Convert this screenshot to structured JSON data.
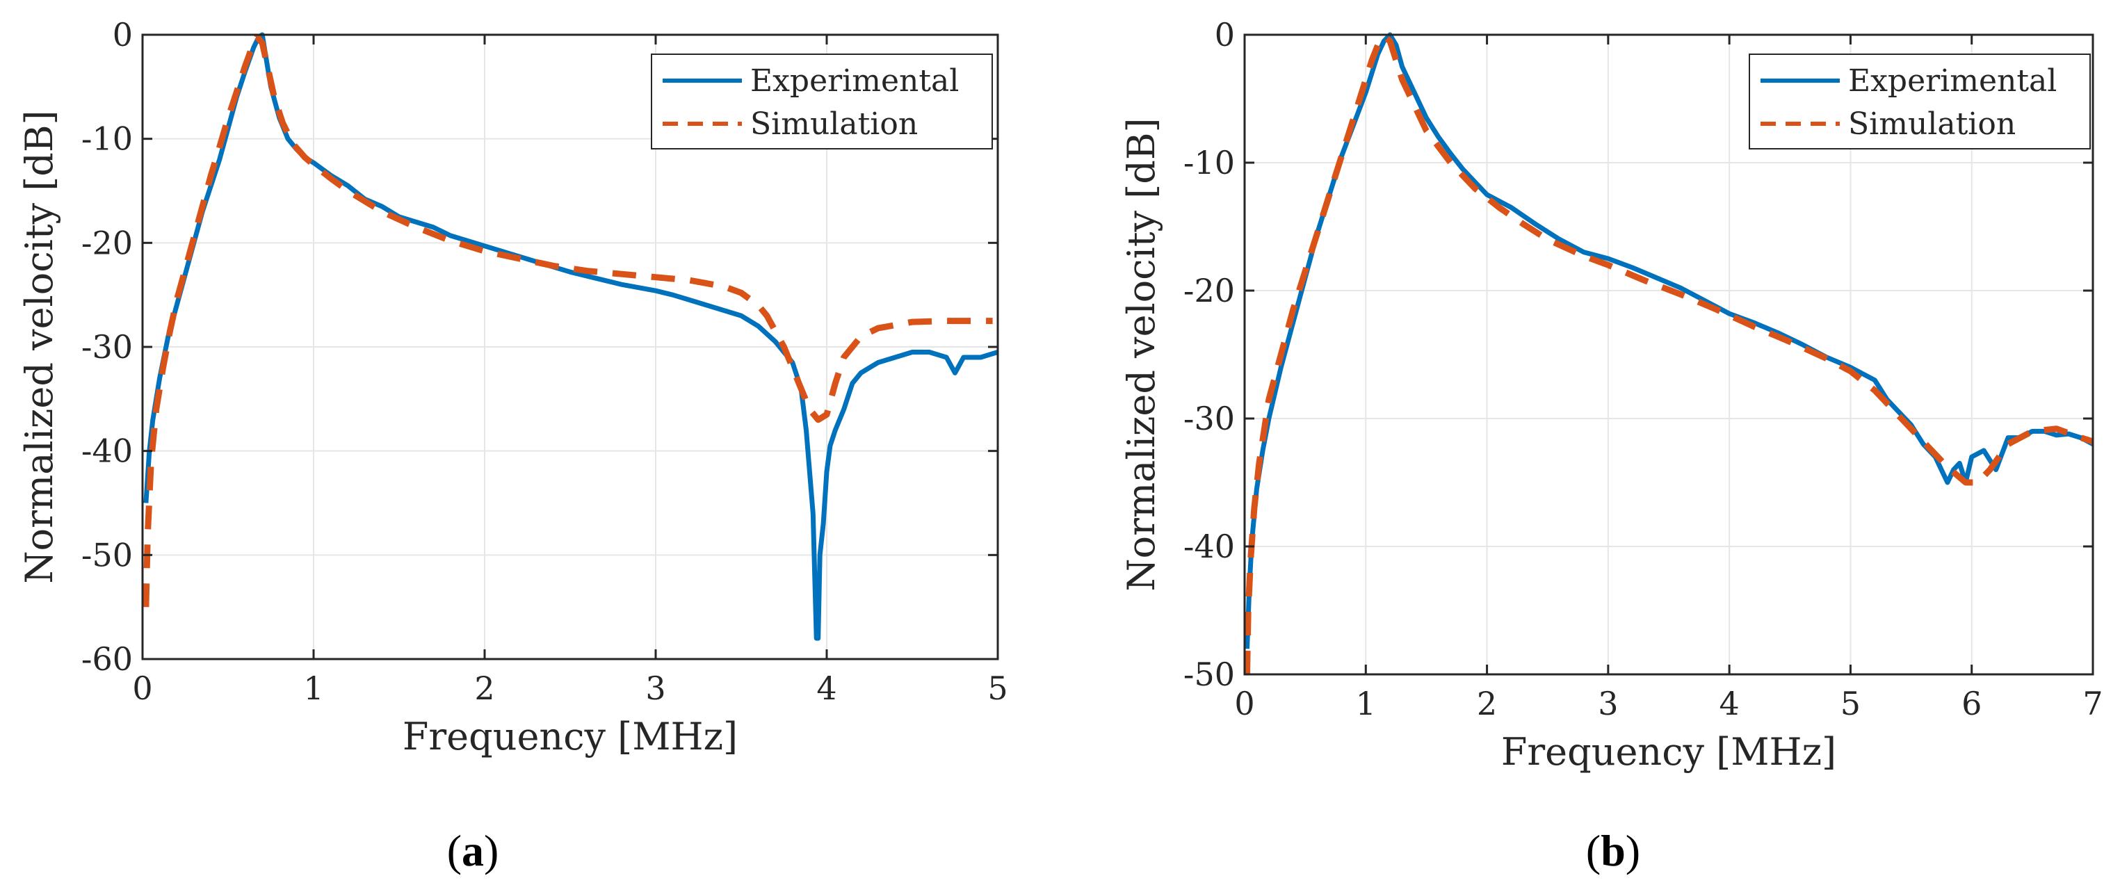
{
  "colors": {
    "experimental": "#0072BD",
    "simulation": "#D95319",
    "grid": "#e6e6e6",
    "axis": "#262626"
  },
  "chart_data": [
    {
      "id": "a",
      "type": "line",
      "caption": {
        "open": "(",
        "letter": "a",
        "close": ")"
      },
      "xlabel": "Frequency [MHz]",
      "ylabel": "Normalized velocity [dB]",
      "xlim": [
        0,
        5
      ],
      "ylim": [
        -60,
        0
      ],
      "xticks": [
        0,
        1,
        2,
        3,
        4,
        5
      ],
      "yticks": [
        0,
        -10,
        -20,
        -30,
        -40,
        -50,
        -60
      ],
      "grid": true,
      "legend_position": "top-right",
      "series": [
        {
          "name": "Experimental",
          "style": "solid",
          "x": [
            0.02,
            0.04,
            0.06,
            0.1,
            0.15,
            0.2,
            0.25,
            0.3,
            0.35,
            0.4,
            0.45,
            0.5,
            0.55,
            0.6,
            0.65,
            0.68,
            0.7,
            0.72,
            0.75,
            0.8,
            0.85,
            0.9,
            0.95,
            1.0,
            1.1,
            1.2,
            1.3,
            1.4,
            1.5,
            1.6,
            1.7,
            1.8,
            1.9,
            2.0,
            2.1,
            2.2,
            2.3,
            2.4,
            2.5,
            2.6,
            2.7,
            2.8,
            2.9,
            3.0,
            3.1,
            3.2,
            3.3,
            3.4,
            3.5,
            3.6,
            3.7,
            3.75,
            3.8,
            3.85,
            3.88,
            3.9,
            3.92,
            3.94,
            3.95,
            3.96,
            3.98,
            4.0,
            4.02,
            4.05,
            4.1,
            4.15,
            4.2,
            4.25,
            4.3,
            4.4,
            4.5,
            4.6,
            4.7,
            4.75,
            4.8,
            4.9,
            5.0
          ],
          "values": [
            -45,
            -40,
            -37,
            -33,
            -29,
            -26,
            -23,
            -20,
            -17,
            -14.5,
            -12,
            -9,
            -6,
            -3.5,
            -1.2,
            -0.2,
            0,
            -2,
            -5,
            -8,
            -10,
            -11,
            -11.8,
            -12.3,
            -13.5,
            -14.5,
            -15.8,
            -16.5,
            -17.5,
            -18,
            -18.5,
            -19.3,
            -19.8,
            -20.3,
            -20.8,
            -21.3,
            -21.8,
            -22.3,
            -22.8,
            -23.2,
            -23.6,
            -24,
            -24.3,
            -24.6,
            -25,
            -25.5,
            -26,
            -26.5,
            -27,
            -28,
            -29.5,
            -30.5,
            -31.5,
            -34,
            -38,
            -42,
            -46,
            -58,
            -58,
            -50,
            -47,
            -42,
            -39.5,
            -38,
            -36,
            -33.5,
            -32.5,
            -32,
            -31.5,
            -31,
            -30.5,
            -30.5,
            -31,
            -32.5,
            -31,
            -31,
            -30.5
          ]
        },
        {
          "name": "Simulation",
          "style": "dashed",
          "x": [
            0.02,
            0.03,
            0.05,
            0.08,
            0.12,
            0.16,
            0.2,
            0.25,
            0.3,
            0.35,
            0.4,
            0.45,
            0.5,
            0.55,
            0.6,
            0.64,
            0.67,
            0.7,
            0.73,
            0.77,
            0.82,
            0.88,
            0.95,
            1.0,
            1.1,
            1.2,
            1.4,
            1.6,
            1.8,
            2.0,
            2.2,
            2.4,
            2.6,
            2.8,
            3.0,
            3.2,
            3.4,
            3.5,
            3.6,
            3.65,
            3.7,
            3.75,
            3.8,
            3.85,
            3.9,
            3.95,
            4.0,
            4.05,
            4.1,
            4.2,
            4.3,
            4.5,
            4.7,
            4.9,
            4.97
          ],
          "values": [
            -55,
            -48,
            -41,
            -36,
            -32,
            -28.5,
            -25.5,
            -22.5,
            -19.5,
            -16.5,
            -13.5,
            -10.8,
            -8,
            -5.5,
            -3,
            -1.2,
            -0.2,
            -0.8,
            -3,
            -6,
            -8.5,
            -10.5,
            -11.8,
            -12.5,
            -13.8,
            -15,
            -17,
            -18.5,
            -19.8,
            -20.8,
            -21.5,
            -22.2,
            -22.7,
            -23,
            -23.3,
            -23.6,
            -24.2,
            -24.8,
            -26,
            -27,
            -28.5,
            -30,
            -32,
            -34,
            -36,
            -37,
            -36.5,
            -33.5,
            -31,
            -29,
            -28.2,
            -27.6,
            -27.5,
            -27.5,
            -27.5
          ]
        }
      ]
    },
    {
      "id": "b",
      "type": "line",
      "caption": {
        "open": "(",
        "letter": "b",
        "close": ")"
      },
      "xlabel": "Frequency [MHz]",
      "ylabel": "Normalized velocity [dB]",
      "xlim": [
        0,
        7
      ],
      "ylim": [
        -50,
        0
      ],
      "xticks": [
        0,
        1,
        2,
        3,
        4,
        5,
        6,
        7
      ],
      "yticks": [
        0,
        -10,
        -20,
        -30,
        -40,
        -50
      ],
      "grid": true,
      "legend_position": "top-right",
      "series": [
        {
          "name": "Experimental",
          "style": "solid",
          "x": [
            0.02,
            0.04,
            0.06,
            0.1,
            0.15,
            0.2,
            0.3,
            0.4,
            0.5,
            0.6,
            0.7,
            0.8,
            0.9,
            1.0,
            1.05,
            1.1,
            1.15,
            1.2,
            1.25,
            1.3,
            1.4,
            1.5,
            1.6,
            1.7,
            1.8,
            1.9,
            2.0,
            2.2,
            2.4,
            2.6,
            2.8,
            3.0,
            3.2,
            3.4,
            3.6,
            3.8,
            4.0,
            4.2,
            4.4,
            4.6,
            4.8,
            5.0,
            5.2,
            5.3,
            5.4,
            5.5,
            5.6,
            5.7,
            5.75,
            5.8,
            5.85,
            5.9,
            5.95,
            6.0,
            6.1,
            6.2,
            6.3,
            6.4,
            6.5,
            6.6,
            6.7,
            6.8,
            6.9,
            7.0
          ],
          "values": [
            -48,
            -43,
            -39.5,
            -35.5,
            -32.5,
            -30,
            -26,
            -22.5,
            -19,
            -15.5,
            -12.5,
            -9.5,
            -7,
            -4.5,
            -3,
            -1.5,
            -0.5,
            0,
            -0.8,
            -2.5,
            -4.5,
            -6.5,
            -8,
            -9.3,
            -10.5,
            -11.5,
            -12.5,
            -13.5,
            -14.8,
            -16,
            -17,
            -17.5,
            -18.2,
            -19,
            -19.8,
            -20.8,
            -21.8,
            -22.5,
            -23.3,
            -24.2,
            -25.2,
            -26,
            -27,
            -28.5,
            -29.5,
            -30.5,
            -32,
            -33,
            -34,
            -35,
            -34,
            -33.5,
            -35,
            -33,
            -32.5,
            -34,
            -31.5,
            -31.5,
            -31,
            -31,
            -31.3,
            -31.2,
            -31.5,
            -32
          ]
        },
        {
          "name": "Simulation",
          "style": "dashed",
          "x": [
            0.02,
            0.03,
            0.05,
            0.08,
            0.12,
            0.16,
            0.2,
            0.3,
            0.4,
            0.5,
            0.6,
            0.7,
            0.8,
            0.9,
            1.0,
            1.05,
            1.1,
            1.15,
            1.2,
            1.25,
            1.3,
            1.4,
            1.5,
            1.7,
            1.9,
            2.1,
            2.3,
            2.5,
            2.8,
            3.0,
            3.3,
            3.6,
            3.9,
            4.2,
            4.5,
            4.8,
            5.0,
            5.2,
            5.4,
            5.6,
            5.8,
            5.95,
            6.05,
            6.15,
            6.3,
            6.5,
            6.7,
            6.9,
            7.0
          ],
          "values": [
            -50,
            -45,
            -41,
            -37,
            -33.5,
            -31,
            -28.5,
            -25,
            -21.5,
            -18.5,
            -15.5,
            -12.5,
            -9.5,
            -6.5,
            -3.5,
            -2,
            -0.8,
            -0.1,
            -0.5,
            -2,
            -3.5,
            -5.5,
            -7.5,
            -10,
            -12,
            -13.5,
            -14.8,
            -16,
            -17.3,
            -18,
            -19.2,
            -20.3,
            -21.5,
            -22.8,
            -24,
            -25.3,
            -26.3,
            -27.8,
            -29.8,
            -31.8,
            -33.8,
            -35,
            -35,
            -34,
            -32,
            -31,
            -30.8,
            -31.5,
            -31.8
          ]
        }
      ]
    }
  ]
}
